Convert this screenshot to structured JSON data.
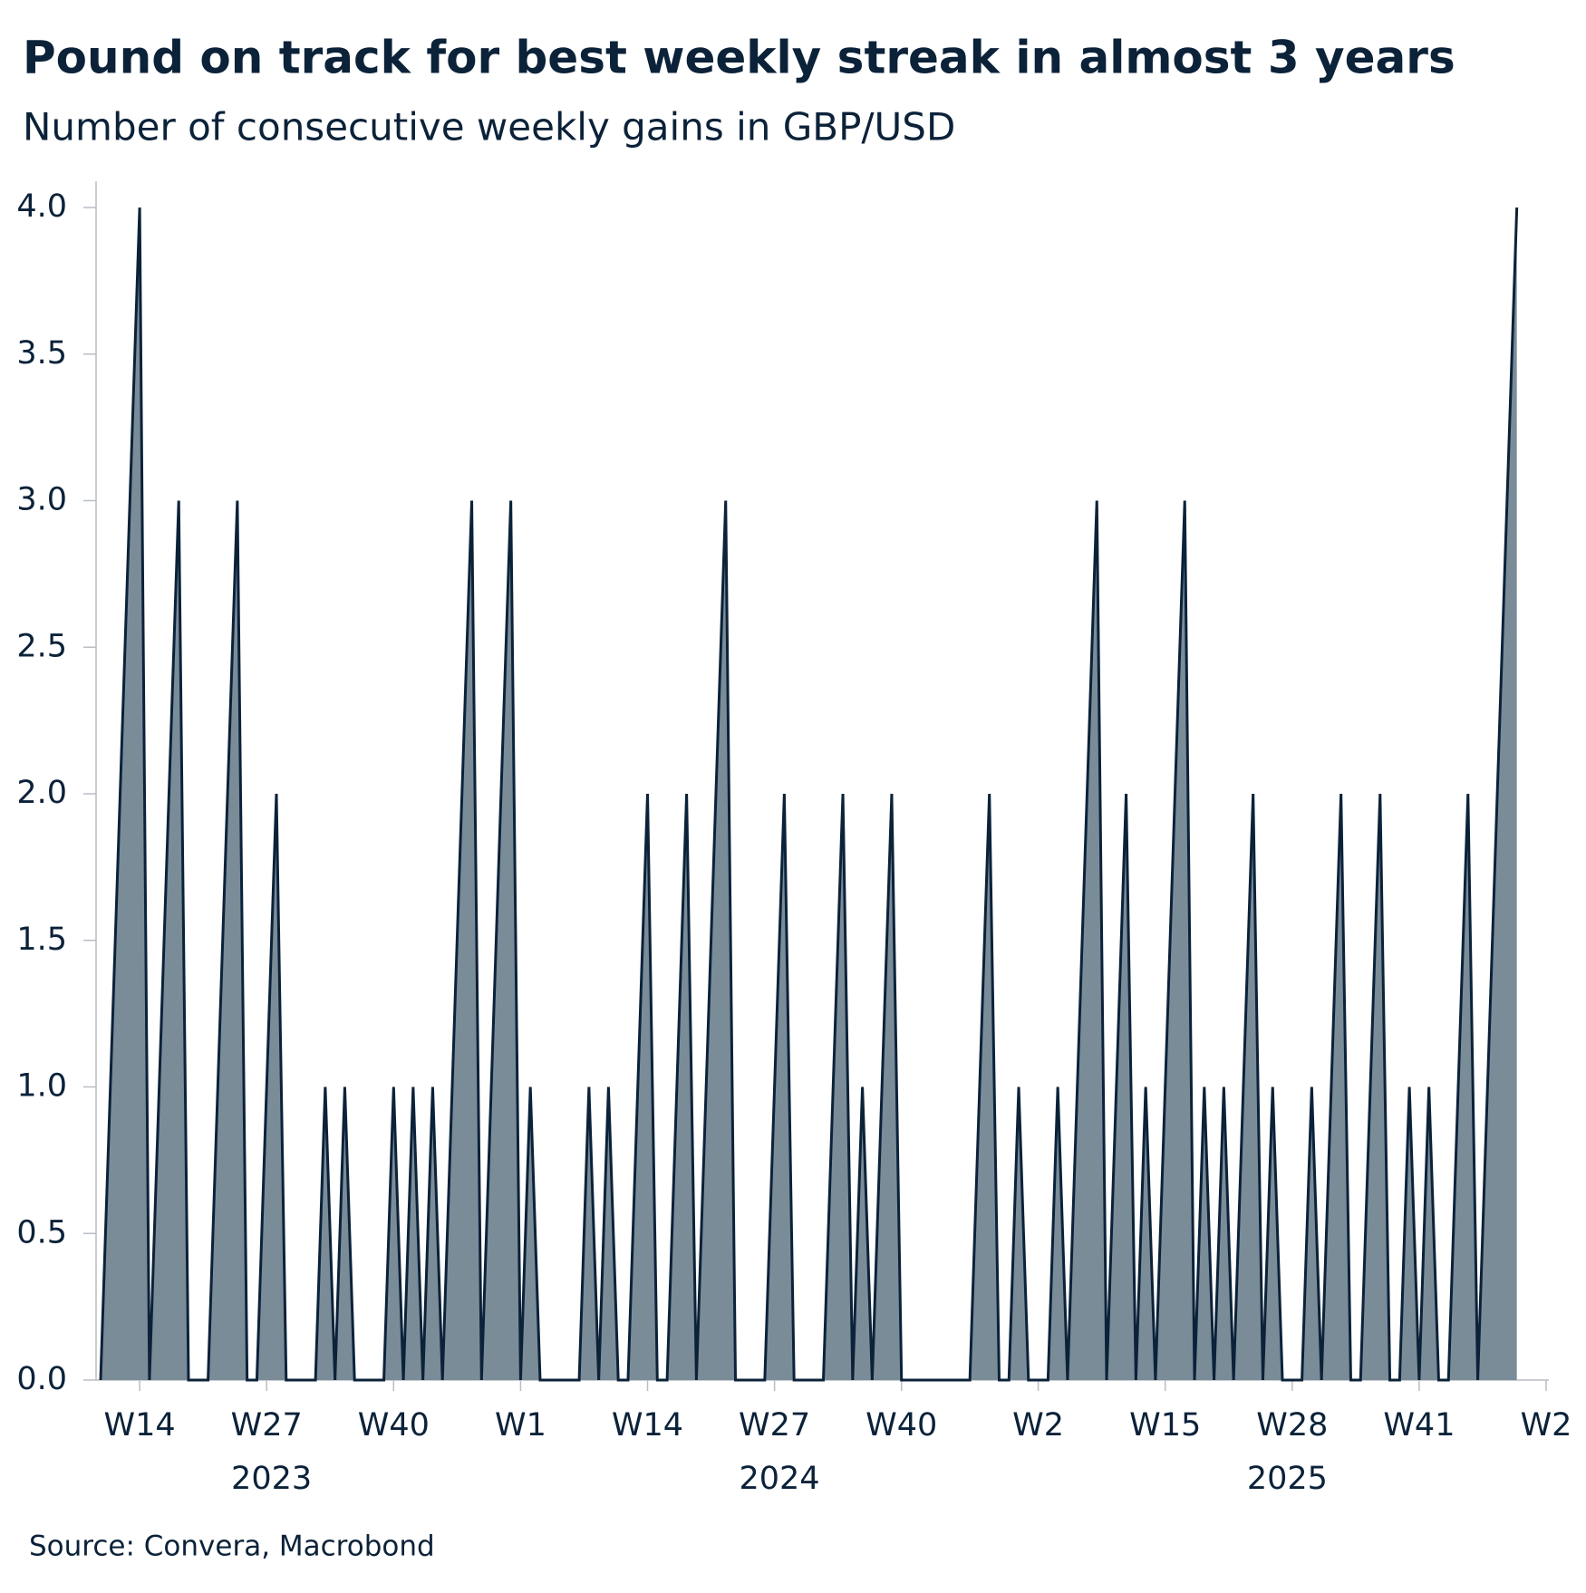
{
  "chart_data": {
    "type": "area",
    "title": "Pound on track for best weekly streak in almost 3 years",
    "subtitle": "Number of consecutive weekly gains in GBP/USD",
    "source": "Source: Convera, Macrobond",
    "line_color": "#0b2239",
    "fill_color": "#7b8c99",
    "x": [
      "2023-W10",
      "2023-W11",
      "2023-W12",
      "2023-W13",
      "2023-W14",
      "2023-W15",
      "2023-W16",
      "2023-W17",
      "2023-W18",
      "2023-W19",
      "2023-W20",
      "2023-W21",
      "2023-W22",
      "2023-W23",
      "2023-W24",
      "2023-W25",
      "2023-W26",
      "2023-W27",
      "2023-W28",
      "2023-W29",
      "2023-W30",
      "2023-W31",
      "2023-W32",
      "2023-W33",
      "2023-W34",
      "2023-W35",
      "2023-W36",
      "2023-W37",
      "2023-W38",
      "2023-W39",
      "2023-W40",
      "2023-W41",
      "2023-W42",
      "2023-W43",
      "2023-W44",
      "2023-W45",
      "2023-W46",
      "2023-W47",
      "2023-W48",
      "2023-W49",
      "2023-W50",
      "2023-W51",
      "2023-W52",
      "2024-W1",
      "2024-W2",
      "2024-W3",
      "2024-W4",
      "2024-W5",
      "2024-W6",
      "2024-W7",
      "2024-W8",
      "2024-W9",
      "2024-W10",
      "2024-W11",
      "2024-W12",
      "2024-W13",
      "2024-W14",
      "2024-W15",
      "2024-W16",
      "2024-W17",
      "2024-W18",
      "2024-W19",
      "2024-W20",
      "2024-W21",
      "2024-W22",
      "2024-W23",
      "2024-W24",
      "2024-W25",
      "2024-W26",
      "2024-W27",
      "2024-W28",
      "2024-W29",
      "2024-W30",
      "2024-W31",
      "2024-W32",
      "2024-W33",
      "2024-W34",
      "2024-W35",
      "2024-W36",
      "2024-W37",
      "2024-W38",
      "2024-W39",
      "2024-W40",
      "2024-W41",
      "2024-W42",
      "2024-W43",
      "2024-W44",
      "2024-W45",
      "2024-W46",
      "2024-W47",
      "2024-W48",
      "2024-W49",
      "2024-W50",
      "2024-W51",
      "2024-W52",
      "2025-W1",
      "2025-W2",
      "2025-W3",
      "2025-W4",
      "2025-W5",
      "2025-W6",
      "2025-W7",
      "2025-W8",
      "2025-W9",
      "2025-W10",
      "2025-W11",
      "2025-W12",
      "2025-W13",
      "2025-W14",
      "2025-W15",
      "2025-W16",
      "2025-W17",
      "2025-W18",
      "2025-W19",
      "2025-W20",
      "2025-W21",
      "2025-W22",
      "2025-W23",
      "2025-W24",
      "2025-W25",
      "2025-W26",
      "2025-W27",
      "2025-W28",
      "2025-W29",
      "2025-W30",
      "2025-W31",
      "2025-W32",
      "2025-W33",
      "2025-W34",
      "2025-W35",
      "2025-W36",
      "2025-W37",
      "2025-W38",
      "2025-W39",
      "2025-W40",
      "2025-W41",
      "2025-W42",
      "2025-W43",
      "2025-W44",
      "2025-W45",
      "2025-W46",
      "2025-W47",
      "2025-W48",
      "2025-W49",
      "2025-W50",
      "2025-W51"
    ],
    "values": [
      0,
      1,
      2,
      3,
      4,
      0,
      1,
      2,
      3,
      0,
      0,
      0,
      1,
      2,
      3,
      0,
      0,
      1,
      2,
      0,
      0,
      0,
      0,
      1,
      0,
      1,
      0,
      0,
      0,
      0,
      1,
      0,
      1,
      0,
      1,
      0,
      1,
      2,
      3,
      0,
      1,
      2,
      3,
      0,
      1,
      0,
      0,
      0,
      0,
      0,
      1,
      0,
      1,
      0,
      0,
      1,
      2,
      0,
      0,
      1,
      2,
      0,
      1,
      2,
      3,
      0,
      0,
      0,
      0,
      1,
      2,
      0,
      0,
      0,
      0,
      1,
      2,
      0,
      1,
      0,
      1,
      2,
      0,
      0,
      0,
      0,
      0,
      0,
      0,
      0,
      1,
      2,
      0,
      0,
      1,
      0,
      0,
      0,
      1,
      0,
      1,
      2,
      3,
      0,
      1,
      2,
      0,
      1,
      0,
      1,
      2,
      3,
      0,
      1,
      0,
      1,
      0,
      1,
      2,
      0,
      1,
      0,
      0,
      0,
      1,
      0,
      1,
      2,
      0,
      0,
      1,
      2,
      0,
      0,
      1,
      0,
      1,
      0,
      0,
      1,
      2,
      0,
      1,
      2,
      3,
      4
    ],
    "xlim": [
      "2023-W10",
      "2026-W2"
    ],
    "xticks": [
      {
        "value": "2023-W14",
        "label": "W14"
      },
      {
        "value": "2023-W27",
        "label": "W27"
      },
      {
        "value": "2023-W40",
        "label": "W40"
      },
      {
        "value": "2024-W1",
        "label": "W1"
      },
      {
        "value": "2024-W14",
        "label": "W14"
      },
      {
        "value": "2024-W27",
        "label": "W27"
      },
      {
        "value": "2024-W40",
        "label": "W40"
      },
      {
        "value": "2025-W2",
        "label": "W2"
      },
      {
        "value": "2025-W15",
        "label": "W15"
      },
      {
        "value": "2025-W28",
        "label": "W28"
      },
      {
        "value": "2025-W41",
        "label": "W41"
      },
      {
        "value": "2026-W2",
        "label": "W2"
      }
    ],
    "x_group_labels": [
      "2023",
      "2024",
      "2025"
    ],
    "ylim": [
      0,
      4
    ],
    "yticks": [
      {
        "value": 0,
        "label": "0.0"
      },
      {
        "value": 0.5,
        "label": "0.5"
      },
      {
        "value": 1,
        "label": "1.0"
      },
      {
        "value": 1.5,
        "label": "1.5"
      },
      {
        "value": 2,
        "label": "2.0"
      },
      {
        "value": 2.5,
        "label": "2.5"
      },
      {
        "value": 3,
        "label": "3.0"
      },
      {
        "value": 3.5,
        "label": "3.5"
      },
      {
        "value": 4,
        "label": "4.0"
      }
    ],
    "grid": false
  }
}
